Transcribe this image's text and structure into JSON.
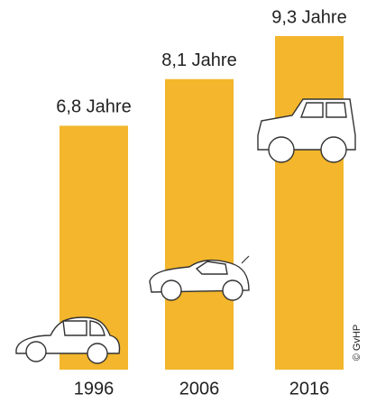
{
  "chart_data": {
    "type": "bar",
    "categories": [
      "1996",
      "2006",
      "2016"
    ],
    "values": [
      6.8,
      8.1,
      9.3
    ],
    "value_labels": [
      "6,8 Jahre",
      "8,1 Jahre",
      "9,3 Jahre"
    ],
    "color": "#f3b62c",
    "copyright": "© GvHP"
  }
}
